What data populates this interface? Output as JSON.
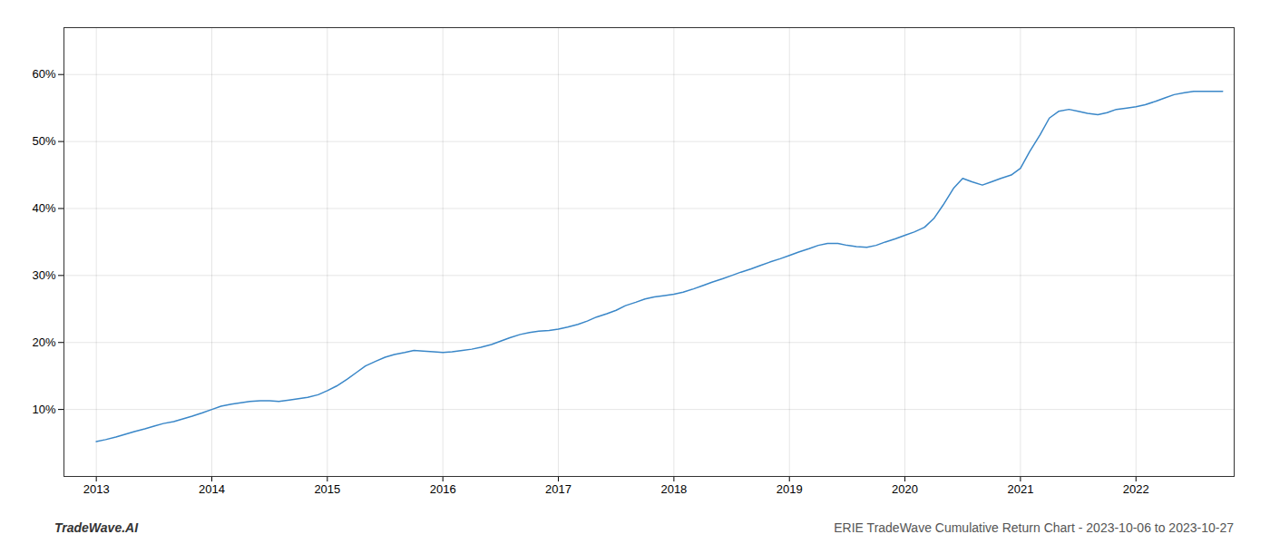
{
  "chart_data": {
    "type": "line",
    "title": "ERIE TradeWave Cumulative Return Chart - 2023-10-06 to 2023-10-27",
    "annotations": [
      "TradeWave.AI"
    ],
    "color": "#3a87c8",
    "grid": true,
    "x": [
      2013.0,
      2013.08,
      2013.17,
      2013.25,
      2013.33,
      2013.42,
      2013.5,
      2013.58,
      2013.67,
      2013.75,
      2013.83,
      2013.92,
      2014.0,
      2014.08,
      2014.17,
      2014.25,
      2014.33,
      2014.42,
      2014.5,
      2014.58,
      2014.67,
      2014.75,
      2014.83,
      2014.92,
      2015.0,
      2015.08,
      2015.17,
      2015.25,
      2015.33,
      2015.42,
      2015.5,
      2015.58,
      2015.67,
      2015.75,
      2015.83,
      2015.92,
      2016.0,
      2016.08,
      2016.17,
      2016.25,
      2016.33,
      2016.42,
      2016.5,
      2016.58,
      2016.67,
      2016.75,
      2016.83,
      2016.92,
      2017.0,
      2017.08,
      2017.17,
      2017.25,
      2017.33,
      2017.42,
      2017.5,
      2017.58,
      2017.67,
      2017.75,
      2017.83,
      2017.92,
      2018.0,
      2018.08,
      2018.17,
      2018.25,
      2018.33,
      2018.42,
      2018.5,
      2018.58,
      2018.67,
      2018.75,
      2018.83,
      2018.92,
      2019.0,
      2019.08,
      2019.17,
      2019.25,
      2019.33,
      2019.42,
      2019.5,
      2019.58,
      2019.67,
      2019.75,
      2019.83,
      2019.92,
      2020.0,
      2020.08,
      2020.17,
      2020.25,
      2020.33,
      2020.42,
      2020.5,
      2020.58,
      2020.67,
      2020.75,
      2020.83,
      2020.92,
      2021.0,
      2021.08,
      2021.17,
      2021.25,
      2021.33,
      2021.42,
      2021.5,
      2021.58,
      2021.67,
      2021.75,
      2021.83,
      2021.92,
      2022.0,
      2022.08,
      2022.17,
      2022.25,
      2022.33,
      2022.42,
      2022.5,
      2022.58,
      2022.67,
      2022.75
    ],
    "values": [
      5.2,
      5.5,
      5.9,
      6.3,
      6.7,
      7.1,
      7.5,
      7.9,
      8.2,
      8.6,
      9.0,
      9.5,
      10.0,
      10.5,
      10.8,
      11.0,
      11.2,
      11.3,
      11.3,
      11.2,
      11.4,
      11.6,
      11.8,
      12.2,
      12.8,
      13.5,
      14.5,
      15.5,
      16.5,
      17.2,
      17.8,
      18.2,
      18.5,
      18.8,
      18.7,
      18.6,
      18.5,
      18.6,
      18.8,
      19.0,
      19.3,
      19.7,
      20.2,
      20.7,
      21.2,
      21.5,
      21.7,
      21.8,
      22.0,
      22.3,
      22.7,
      23.2,
      23.8,
      24.3,
      24.8,
      25.5,
      26.0,
      26.5,
      26.8,
      27.0,
      27.2,
      27.5,
      28.0,
      28.5,
      29.0,
      29.5,
      30.0,
      30.5,
      31.0,
      31.5,
      32.0,
      32.5,
      33.0,
      33.5,
      34.0,
      34.5,
      34.8,
      34.8,
      34.5,
      34.3,
      34.2,
      34.5,
      35.0,
      35.5,
      36.0,
      36.5,
      37.2,
      38.5,
      40.5,
      43.0,
      44.5,
      44.0,
      43.5,
      44.0,
      44.5,
      45.0,
      46.0,
      48.5,
      51.0,
      53.5,
      54.5,
      54.8,
      54.5,
      54.2,
      54.0,
      54.3,
      54.8,
      55.0,
      55.2,
      55.5,
      56.0,
      56.5,
      57.0,
      57.3,
      57.5,
      57.5,
      57.5,
      57.5
    ],
    "xlim": [
      2012.72,
      2022.85
    ],
    "xticks": [
      2013,
      2014,
      2015,
      2016,
      2017,
      2018,
      2019,
      2020,
      2021,
      2022
    ],
    "ylim": [
      0,
      67
    ],
    "yticks": [
      {
        "value": 10,
        "label": "10%"
      },
      {
        "value": 20,
        "label": "20%"
      },
      {
        "value": 30,
        "label": "30%"
      },
      {
        "value": 40,
        "label": "40%"
      },
      {
        "value": 50,
        "label": "50%"
      },
      {
        "value": 60,
        "label": "60%"
      }
    ]
  }
}
